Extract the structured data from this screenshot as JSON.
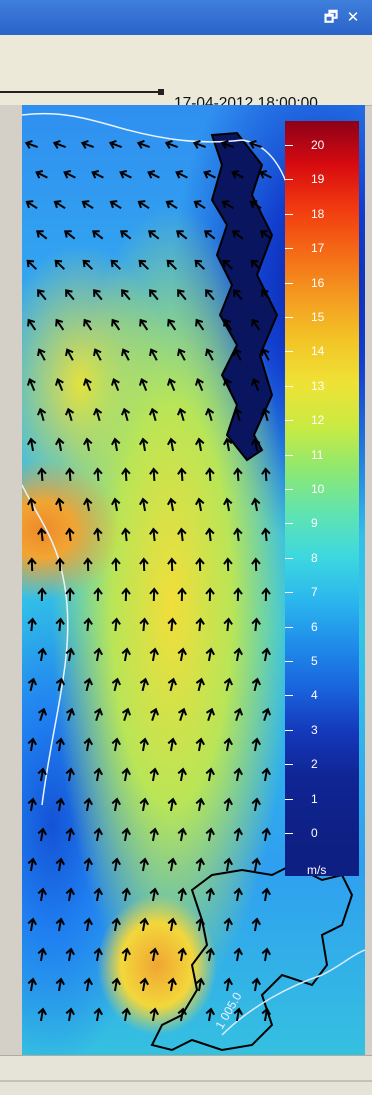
{
  "window": {
    "restore_icon": "restore-window-icon",
    "close_icon": "close-icon",
    "restore_glyph": "🗗",
    "close_glyph": "✕"
  },
  "toolbar": {
    "timestamp": "17-04-2012 18:00:00"
  },
  "map": {
    "contour_label": "1 005.0",
    "colorbar": {
      "unit": "m/s",
      "ticks": [
        "20",
        "19",
        "18",
        "17",
        "16",
        "15",
        "14",
        "13",
        "12",
        "11",
        "10",
        "9",
        "8",
        "7",
        "6",
        "5",
        "4",
        "3",
        "2",
        "1",
        "0"
      ],
      "min": 0,
      "max": 20
    }
  }
}
